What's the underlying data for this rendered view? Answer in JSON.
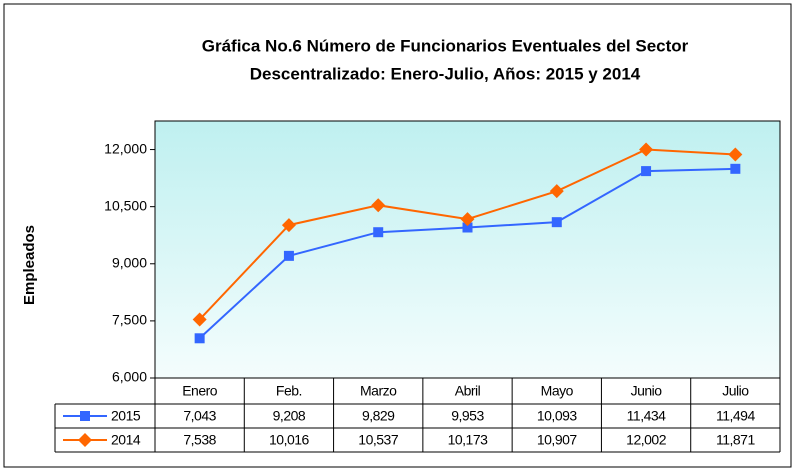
{
  "chart_data": {
    "type": "line",
    "title": [
      "Gráfica No.6 Número de Funcionarios Eventuales del Sector",
      "Descentralizado: Enero-Julio, Años: 2015 y 2014"
    ],
    "y_label": "Empleados",
    "categories": [
      "Enero",
      "Feb.",
      "Marzo",
      "Abril",
      "Mayo",
      "Junio",
      "Julio"
    ],
    "series": [
      {
        "name": "2015",
        "color": "#3366ff",
        "marker": "square",
        "values": [
          7043,
          9208,
          9829,
          9953,
          10093,
          11434,
          11494
        ],
        "value_labels": [
          "7,043",
          "9,208",
          "9,829",
          "9,953",
          "10,093",
          "11,434",
          "11,494"
        ]
      },
      {
        "name": "2014",
        "color": "#ff6600",
        "marker": "diamond",
        "values": [
          7538,
          10016,
          10537,
          10173,
          10907,
          12002,
          11871
        ],
        "value_labels": [
          "7,538",
          "10,016",
          "10,537",
          "10,173",
          "10,907",
          "12,002",
          "11,871"
        ]
      }
    ],
    "ylim": [
      6000,
      12750
    ],
    "yticks": [
      {
        "value": 6000,
        "label": "6,000"
      },
      {
        "value": 7500,
        "label": "7,500"
      },
      {
        "value": 9000,
        "label": "9,000"
      },
      {
        "value": 10500,
        "label": "10,500"
      },
      {
        "value": 12000,
        "label": "12,000"
      }
    ],
    "grid": false
  }
}
